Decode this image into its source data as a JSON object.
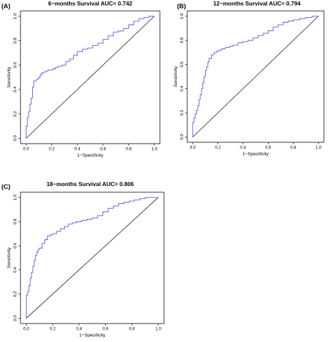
{
  "chart_data": [
    {
      "type": "line",
      "panel": "(A)",
      "title": "6−months Survival AUC= 0.742",
      "xlabel": "1−Specificity",
      "ylabel": "Sensitivity",
      "xlim": [
        0,
        1
      ],
      "ylim": [
        0,
        1
      ],
      "xticks": [
        "0.0",
        "0.2",
        "0.4",
        "0.6",
        "0.8",
        "1.0"
      ],
      "yticks": [
        "0.0",
        "0.2",
        "0.4",
        "0.6",
        "0.8",
        "1.0"
      ],
      "grid": false,
      "reference_line": [
        [
          0,
          0
        ],
        [
          1,
          1
        ]
      ],
      "series": [
        {
          "color": "#5b55d6",
          "x": [
            0,
            0,
            0.01,
            0.01,
            0.02,
            0.02,
            0.03,
            0.03,
            0.04,
            0.05,
            0.05,
            0.06,
            0.06,
            0.07,
            0.08,
            0.09,
            0.1,
            0.11,
            0.12,
            0.13,
            0.15,
            0.17,
            0.19,
            0.21,
            0.23,
            0.25,
            0.28,
            0.31,
            0.34,
            0.37,
            0.4,
            0.44,
            0.48,
            0.52,
            0.56,
            0.6,
            0.64,
            0.68,
            0.72,
            0.76,
            0.8,
            0.84,
            0.88,
            0.92,
            0.96,
            1.0
          ],
          "y": [
            0,
            0.1,
            0.12,
            0.17,
            0.19,
            0.22,
            0.24,
            0.28,
            0.33,
            0.38,
            0.42,
            0.45,
            0.47,
            0.47,
            0.48,
            0.49,
            0.5,
            0.52,
            0.53,
            0.54,
            0.55,
            0.56,
            0.56,
            0.57,
            0.58,
            0.59,
            0.6,
            0.63,
            0.65,
            0.68,
            0.71,
            0.73,
            0.74,
            0.76,
            0.78,
            0.81,
            0.84,
            0.87,
            0.88,
            0.9,
            0.93,
            0.96,
            0.98,
            0.99,
            1.0,
            1.0
          ]
        }
      ]
    },
    {
      "type": "line",
      "panel": "(B)",
      "title": "12−months Survival AUC= 0.794",
      "xlabel": "1−Specificity",
      "ylabel": "Sensitivity",
      "xlim": [
        0,
        1
      ],
      "ylim": [
        0,
        1
      ],
      "xticks": [
        "0.0",
        "0.2",
        "0.4",
        "0.6",
        "0.8",
        "1.0"
      ],
      "yticks": [
        "0.0",
        "0.2",
        "0.4",
        "0.6",
        "0.8",
        "1.0"
      ],
      "grid": false,
      "reference_line": [
        [
          0,
          0
        ],
        [
          1,
          1
        ]
      ],
      "series": [
        {
          "color": "#5b55d6",
          "x": [
            0,
            0,
            0.01,
            0.02,
            0.03,
            0.04,
            0.05,
            0.06,
            0.07,
            0.08,
            0.09,
            0.1,
            0.11,
            0.12,
            0.13,
            0.15,
            0.17,
            0.19,
            0.21,
            0.23,
            0.26,
            0.29,
            0.32,
            0.36,
            0.4,
            0.44,
            0.48,
            0.52,
            0.56,
            0.6,
            0.64,
            0.68,
            0.72,
            0.76,
            0.8,
            0.85,
            0.9,
            0.95,
            1.0
          ],
          "y": [
            0,
            0.12,
            0.16,
            0.19,
            0.22,
            0.26,
            0.31,
            0.35,
            0.4,
            0.45,
            0.5,
            0.55,
            0.58,
            0.62,
            0.65,
            0.68,
            0.7,
            0.71,
            0.72,
            0.73,
            0.74,
            0.75,
            0.76,
            0.78,
            0.79,
            0.8,
            0.82,
            0.84,
            0.86,
            0.88,
            0.91,
            0.93,
            0.95,
            0.96,
            0.97,
            0.98,
            0.99,
            1.0,
            1.0
          ]
        }
      ]
    },
    {
      "type": "line",
      "panel": "(C)",
      "title": "18−months Survival AUC= 0.806",
      "xlabel": "1−Specificity",
      "ylabel": "Sensitivity",
      "xlim": [
        0,
        1
      ],
      "ylim": [
        0,
        1
      ],
      "xticks": [
        "0.0",
        "0.2",
        "0.4",
        "0.6",
        "0.8",
        "1.0"
      ],
      "yticks": [
        "0.0",
        "0.2",
        "0.4",
        "0.6",
        "0.8",
        "1.0"
      ],
      "grid": false,
      "reference_line": [
        [
          0,
          0
        ],
        [
          1,
          1
        ]
      ],
      "series": [
        {
          "color": "#5b55d6",
          "x": [
            0,
            0,
            0.01,
            0.02,
            0.03,
            0.04,
            0.05,
            0.06,
            0.07,
            0.08,
            0.09,
            0.1,
            0.12,
            0.14,
            0.16,
            0.18,
            0.2,
            0.23,
            0.26,
            0.29,
            0.32,
            0.35,
            0.38,
            0.42,
            0.46,
            0.5,
            0.54,
            0.58,
            0.62,
            0.66,
            0.7,
            0.74,
            0.78,
            0.82,
            0.86,
            0.9,
            0.95,
            1.0
          ],
          "y": [
            0,
            0.19,
            0.22,
            0.27,
            0.33,
            0.38,
            0.43,
            0.48,
            0.52,
            0.55,
            0.57,
            0.58,
            0.62,
            0.65,
            0.68,
            0.69,
            0.7,
            0.72,
            0.74,
            0.76,
            0.78,
            0.79,
            0.8,
            0.81,
            0.82,
            0.83,
            0.85,
            0.88,
            0.91,
            0.93,
            0.95,
            0.96,
            0.97,
            0.98,
            0.99,
            1.0,
            1.0,
            1.0
          ]
        }
      ]
    }
  ]
}
